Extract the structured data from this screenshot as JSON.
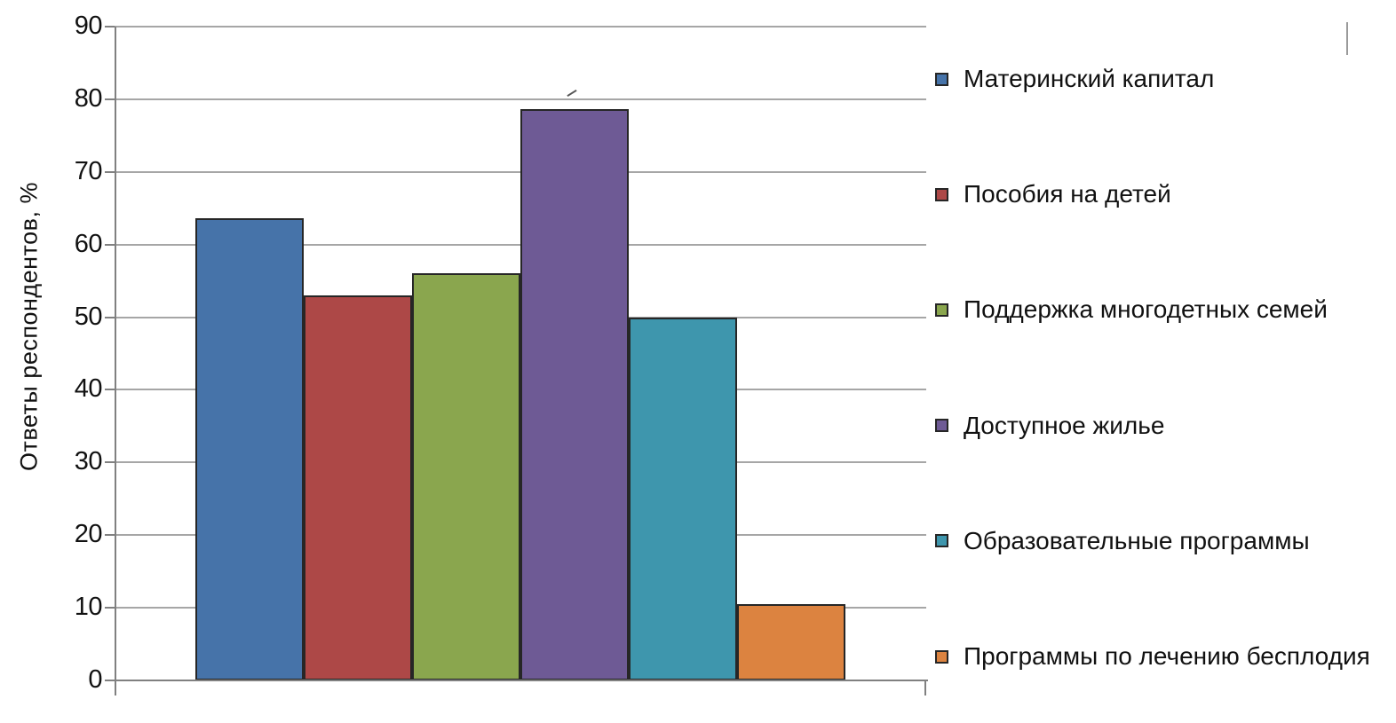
{
  "chart_data": {
    "type": "bar",
    "title": "",
    "xlabel": "",
    "ylabel": "Ответы респондентов, %",
    "ylim": [
      0,
      90
    ],
    "yticks": [
      0,
      10,
      20,
      30,
      40,
      50,
      60,
      70,
      80,
      90
    ],
    "grid": true,
    "legend_position": "right",
    "series": [
      {
        "name": "Материнский капитал",
        "value": 63.6,
        "color": "#4673a9"
      },
      {
        "name": "Пособия на детей",
        "value": 53,
        "color": "#ad4847"
      },
      {
        "name": "Поддержка многодетных семей",
        "value": 56,
        "color": "#8aa64e"
      },
      {
        "name": "Доступное жилье",
        "value": 78.7,
        "color": "#6e5a95"
      },
      {
        "name": "Образовательные программы",
        "value": 50,
        "color": "#3e96ad"
      },
      {
        "name": "Программы по лечению бесплодия",
        "value": 10.5,
        "color": "#dc8340"
      }
    ],
    "colors": {
      "gridline": "#a6a6a6",
      "axis": "#808080",
      "bar_border": "#262626",
      "text": "#111111",
      "background": "#ffffff"
    }
  }
}
